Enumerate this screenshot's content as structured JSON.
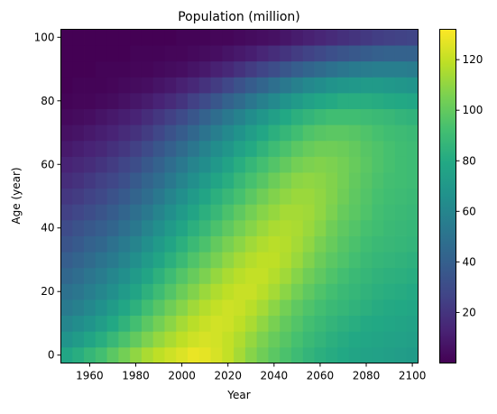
{
  "chart_data": {
    "type": "heatmap",
    "title": "Population (million)",
    "xlabel": "Year",
    "ylabel": "Age (year)",
    "x_ticks": [
      1960,
      1980,
      2000,
      2020,
      2040,
      2060,
      2080,
      2100
    ],
    "y_ticks": [
      0,
      20,
      40,
      60,
      80,
      100
    ],
    "xlim": [
      1947.5,
      2102.5
    ],
    "ylim": [
      -2.5,
      102.5
    ],
    "colorbar_ticks": [
      20,
      40,
      60,
      80,
      100,
      120
    ],
    "colorbar_range": [
      0,
      132
    ],
    "colormap": "viridis",
    "grid": false,
    "colorbar_position": "right",
    "x": [
      1950,
      1955,
      1960,
      1965,
      1970,
      1975,
      1980,
      1985,
      1990,
      1995,
      2000,
      2005,
      2010,
      2015,
      2020,
      2025,
      2030,
      2035,
      2040,
      2045,
      2050,
      2055,
      2060,
      2065,
      2070,
      2075,
      2080,
      2085,
      2090,
      2095,
      2100
    ],
    "y": [
      0,
      5,
      10,
      15,
      20,
      25,
      30,
      35,
      40,
      45,
      50,
      55,
      60,
      65,
      70,
      75,
      80,
      85,
      90,
      95,
      100
    ],
    "z": [
      [
        78,
        82,
        87,
        92,
        98,
        104,
        110,
        115,
        119,
        122,
        125,
        128,
        127,
        124,
        120,
        114,
        108,
        103,
        98,
        94,
        90,
        86,
        83,
        81,
        79,
        77,
        76,
        75,
        74,
        73,
        72
      ],
      [
        68,
        72,
        77,
        82,
        88,
        94,
        100,
        106,
        111,
        115,
        119,
        122,
        124,
        123,
        120,
        116,
        111,
        106,
        101,
        97,
        93,
        89,
        86,
        83,
        81,
        79,
        78,
        77,
        76,
        75,
        74
      ],
      [
        60,
        64,
        68,
        73,
        79,
        85,
        92,
        98,
        104,
        109,
        114,
        118,
        121,
        123,
        122,
        119,
        115,
        110,
        105,
        100,
        96,
        92,
        89,
        86,
        84,
        82,
        80,
        79,
        78,
        77,
        76
      ],
      [
        54,
        57,
        61,
        66,
        72,
        78,
        84,
        91,
        97,
        103,
        108,
        113,
        117,
        120,
        122,
        121,
        118,
        114,
        109,
        104,
        99,
        95,
        92,
        89,
        87,
        85,
        83,
        81,
        80,
        79,
        78
      ],
      [
        49,
        52,
        56,
        60,
        65,
        71,
        77,
        84,
        90,
        96,
        102,
        107,
        112,
        116,
        119,
        121,
        121,
        118,
        114,
        109,
        104,
        99,
        95,
        92,
        89,
        87,
        85,
        83,
        82,
        81,
        80
      ],
      [
        44,
        47,
        51,
        55,
        60,
        65,
        71,
        77,
        84,
        90,
        96,
        101,
        106,
        111,
        115,
        118,
        120,
        120,
        117,
        113,
        108,
        103,
        99,
        95,
        92,
        89,
        87,
        85,
        84,
        83,
        82
      ],
      [
        39,
        42,
        46,
        50,
        54,
        59,
        65,
        71,
        77,
        83,
        89,
        95,
        100,
        105,
        110,
        114,
        117,
        119,
        119,
        116,
        112,
        107,
        102,
        98,
        95,
        92,
        89,
        87,
        86,
        85,
        84
      ],
      [
        34,
        37,
        41,
        44,
        49,
        54,
        59,
        65,
        71,
        77,
        83,
        89,
        94,
        100,
        105,
        109,
        113,
        116,
        118,
        117,
        114,
        110,
        105,
        101,
        97,
        94,
        91,
        89,
        88,
        87,
        86
      ],
      [
        30,
        33,
        36,
        39,
        43,
        48,
        53,
        59,
        65,
        71,
        77,
        83,
        88,
        94,
        99,
        104,
        108,
        112,
        115,
        116,
        115,
        112,
        108,
        103,
        99,
        96,
        93,
        91,
        89,
        88,
        87
      ],
      [
        25,
        28,
        31,
        34,
        38,
        43,
        48,
        53,
        59,
        65,
        71,
        77,
        83,
        88,
        94,
        99,
        104,
        108,
        111,
        114,
        114,
        113,
        110,
        106,
        101,
        98,
        95,
        92,
        90,
        89,
        88
      ],
      [
        21,
        23,
        26,
        29,
        33,
        37,
        42,
        47,
        53,
        59,
        65,
        71,
        77,
        83,
        88,
        93,
        98,
        103,
        107,
        110,
        112,
        112,
        110,
        107,
        103,
        99,
        96,
        93,
        91,
        90,
        89
      ],
      [
        17,
        19,
        22,
        25,
        28,
        32,
        37,
        42,
        47,
        53,
        59,
        65,
        71,
        77,
        82,
        88,
        93,
        97,
        102,
        106,
        109,
        110,
        109,
        107,
        104,
        100,
        97,
        94,
        92,
        91,
        90
      ],
      [
        13,
        15,
        17,
        20,
        23,
        27,
        31,
        36,
        41,
        47,
        53,
        59,
        64,
        70,
        76,
        82,
        87,
        92,
        96,
        100,
        104,
        106,
        107,
        106,
        104,
        101,
        98,
        95,
        93,
        91,
        90
      ],
      [
        9,
        11,
        13,
        15,
        18,
        21,
        25,
        30,
        35,
        40,
        46,
        52,
        58,
        64,
        69,
        75,
        80,
        85,
        90,
        94,
        98,
        101,
        103,
        103,
        102,
        100,
        97,
        95,
        93,
        91,
        90
      ],
      [
        6,
        7,
        9,
        11,
        13,
        16,
        19,
        23,
        28,
        33,
        38,
        44,
        50,
        56,
        62,
        67,
        73,
        78,
        83,
        87,
        91,
        95,
        97,
        98,
        98,
        97,
        95,
        93,
        91,
        90,
        89
      ],
      [
        3,
        4,
        5,
        7,
        9,
        11,
        13,
        17,
        21,
        25,
        30,
        35,
        41,
        47,
        53,
        58,
        64,
        69,
        74,
        79,
        83,
        86,
        89,
        91,
        91,
        91,
        90,
        89,
        88,
        86,
        85
      ],
      [
        1,
        2,
        2,
        3,
        4,
        6,
        8,
        10,
        13,
        16,
        20,
        25,
        30,
        35,
        41,
        46,
        52,
        57,
        62,
        67,
        71,
        75,
        78,
        80,
        82,
        82,
        82,
        81,
        80,
        79,
        78
      ],
      [
        0,
        1,
        1,
        1,
        2,
        3,
        4,
        5,
        7,
        9,
        12,
        15,
        19,
        23,
        28,
        33,
        38,
        43,
        48,
        53,
        57,
        61,
        64,
        67,
        69,
        70,
        71,
        71,
        70,
        69,
        68
      ],
      [
        0,
        0,
        0,
        1,
        1,
        1,
        2,
        2,
        3,
        4,
        5,
        7,
        9,
        12,
        15,
        19,
        23,
        27,
        31,
        35,
        39,
        43,
        46,
        49,
        52,
        54,
        55,
        56,
        56,
        56,
        55
      ],
      [
        0,
        0,
        0,
        0,
        0,
        0,
        1,
        1,
        1,
        2,
        2,
        3,
        4,
        5,
        7,
        9,
        11,
        14,
        17,
        20,
        23,
        26,
        29,
        32,
        34,
        36,
        38,
        40,
        41,
        41,
        41
      ],
      [
        0,
        0,
        0,
        0,
        0,
        0,
        0,
        0,
        0,
        0,
        1,
        1,
        1,
        2,
        2,
        3,
        4,
        5,
        6,
        8,
        10,
        12,
        14,
        16,
        18,
        20,
        22,
        24,
        25,
        26,
        27
      ]
    ]
  }
}
